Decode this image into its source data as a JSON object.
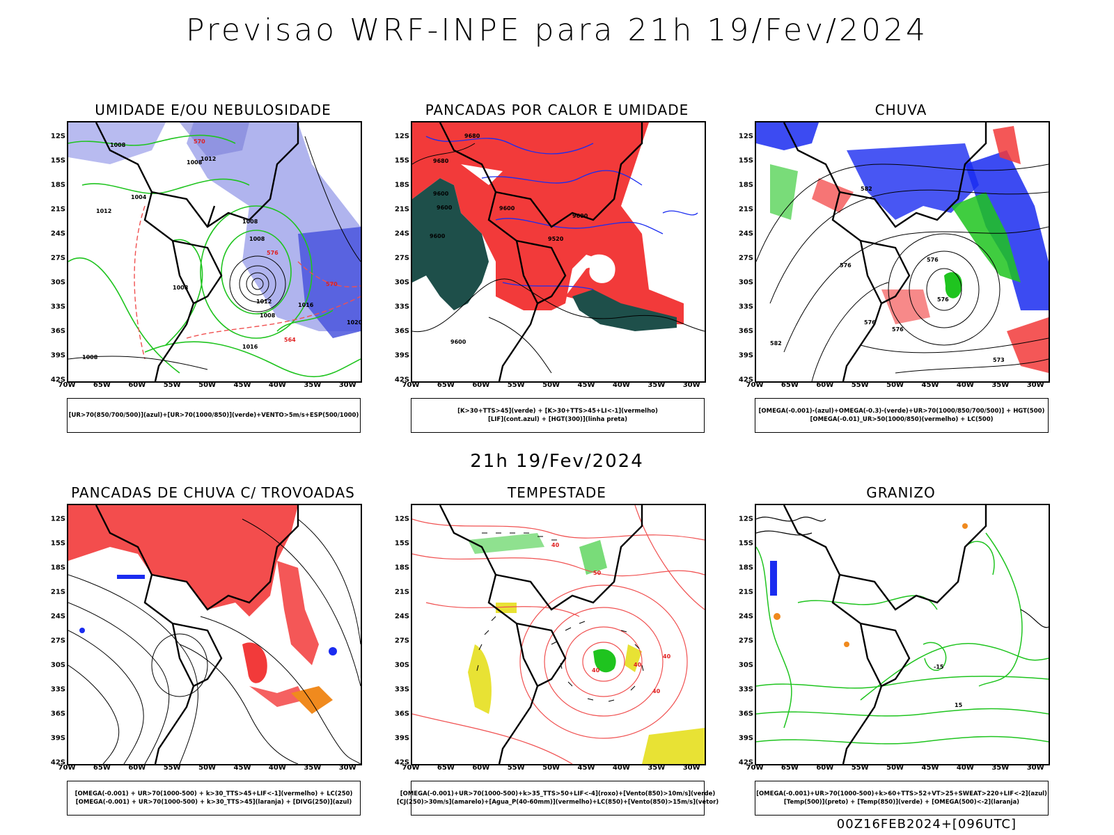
{
  "title": "Previsao WRF-INPE  para 21h 19/Fev/2024",
  "mid_date": "21h 19/Fev/2024",
  "run_info": "00Z16FEB2024+[096UTC]",
  "lat_labels": [
    "12S",
    "15S",
    "18S",
    "21S",
    "24S",
    "27S",
    "30S",
    "33S",
    "36S",
    "39S",
    "42S"
  ],
  "lon_labels": [
    "70W",
    "65W",
    "60W",
    "55W",
    "50W",
    "45W",
    "40W",
    "35W",
    "30W"
  ],
  "colors": {
    "humid_blue": "#b0b4ee",
    "deep_blue": "#4a55dd",
    "green_contour": "#1fc41f",
    "red_field": "#f23a3a",
    "dark_teal": "#1e4f4a",
    "blue": "#1a2cf0",
    "orange": "#f08a1e",
    "yellow": "#e8e234",
    "contour_red": "#f05050",
    "black": "#000000"
  },
  "panels": [
    {
      "title": "UMIDADE E/OU NEBULOSIDADE",
      "legend": [
        "[UR>70(850/700/500)](azul)+[UR>70(1000/850)](verde)+VENTO>5m/s+ESP(500/1000)"
      ],
      "contour_labels": [
        "1008",
        "1008",
        "1012",
        "1004",
        "1012",
        "1008",
        "1008",
        "1008",
        "1012",
        "1016",
        "1020",
        "1016",
        "1008",
        "1008",
        "576",
        "570",
        "564",
        "570"
      ]
    },
    {
      "title": "PANCADAS POR CALOR E UMIDADE",
      "legend": [
        "[K>30+TTS>45](verde) + [K>30+TTS>45+LI<-1](vermelho)",
        "[LIF](cont.azul) + [HGT(300)](linha preta)"
      ],
      "contour_labels": [
        "9680",
        "9680",
        "9600",
        "9600",
        "9600",
        "9600",
        "9600",
        "9520",
        "9600"
      ]
    },
    {
      "title": "CHUVA",
      "legend": [
        "[OMEGA(-0.001)-(azul)+OMEGA(-0.3)-(verde)+UR>70(1000/850/700/500)] + HGT(500)",
        "[OMEGA(-0.01)_UR>50(1000/850)(vermelho) + LC(500)"
      ],
      "contour_labels": [
        "582",
        "576",
        "576",
        "576",
        "576",
        "573",
        "582",
        "576"
      ]
    },
    {
      "title": "PANCADAS DE CHUVA C/ TROVOADAS",
      "legend": [
        "[OMEGA(-0.001) + UR>70(1000-500) + k>30_TTS>45+LIF<-1](vermelho) + LC(250)",
        "[OMEGA(-0.001) + UR>70(1000-500) + k>30_TTS>45](laranja) + [DIVG(250)](azul)"
      ],
      "contour_labels": []
    },
    {
      "title": "TEMPESTADE",
      "legend": [
        "[OMEGA(-0.001)+UR>70(1000-500)+k>35_TTS>50+LIF<-4](roxo)+[Vento(850)>10m/s](verde)",
        "[CJ(250)>30m/s](amarelo)+[Agua_P(40-60mm)](vermelho)+LC(850)+[Vento(850)>15m/s](vetor)"
      ],
      "contour_labels": [
        "40",
        "40",
        "40",
        "50",
        "40",
        "40"
      ]
    },
    {
      "title": "GRANIZO",
      "legend": [
        "[OMEGA(-0.001)+UR>70(1000-500)+k>60+TTS>52+VT>25+SWEAT>220+LIF<-2](azul)",
        "[Temp(500)](preto) + [Temp(850)](verde) + [OMEGA(500)<-2](laranja)"
      ],
      "contour_labels": [
        "-15",
        "15"
      ]
    }
  ]
}
